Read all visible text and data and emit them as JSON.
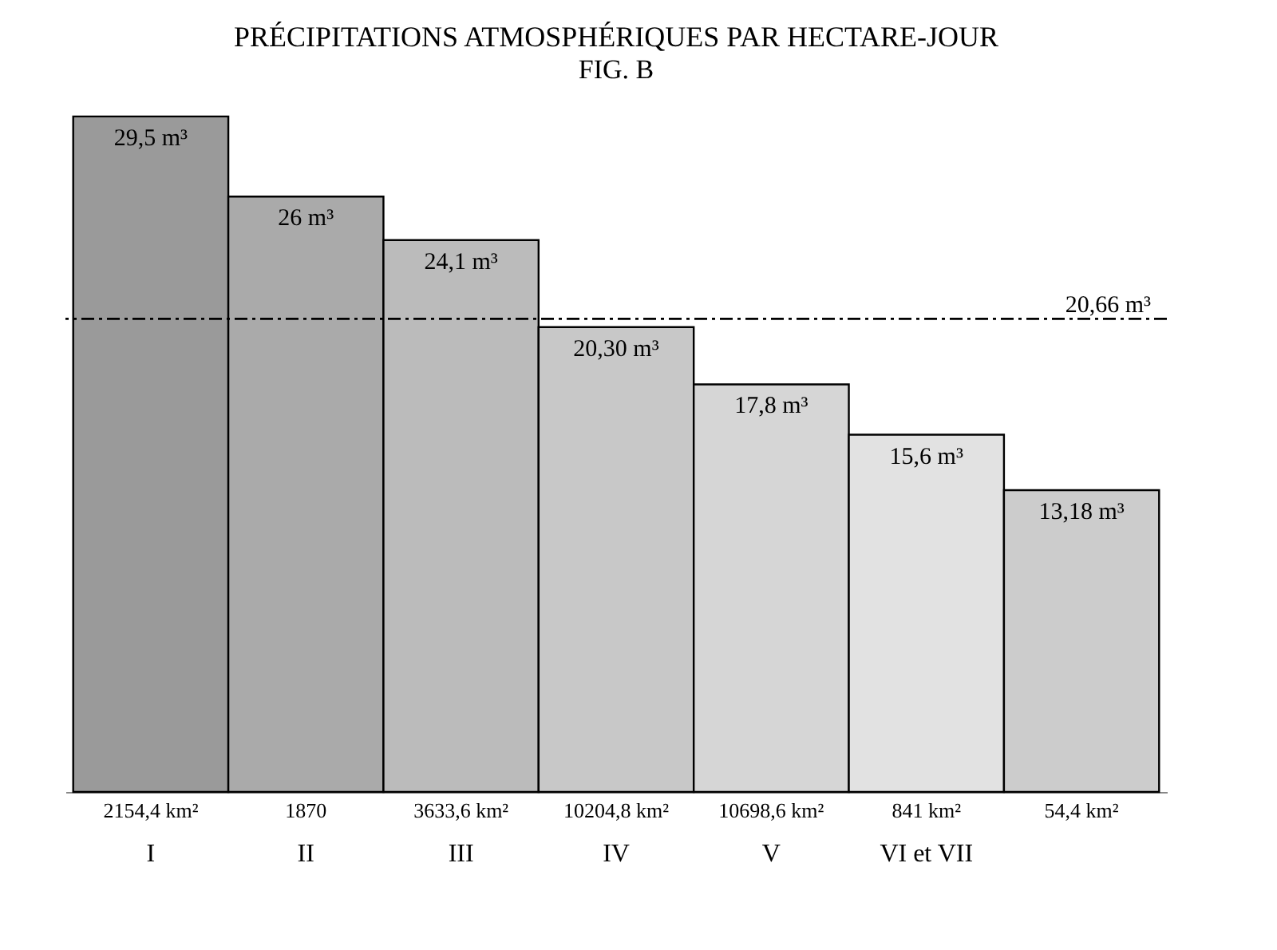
{
  "chart_data": {
    "type": "bar",
    "title": "PRÉCIPITATIONS ATMOSPHÉRIQUES PAR HECTARE-JOUR",
    "subtitle": "FIG. B",
    "categories": [
      "I",
      "II",
      "III",
      "IV",
      "V",
      "VI et VII",
      null
    ],
    "values": [
      29.5,
      26,
      24.1,
      20.3,
      17.8,
      15.6,
      13.18
    ],
    "value_labels": [
      "29,5 m³",
      "26 m³",
      "24,1 m³",
      "20,30 m³",
      "17,8 m³",
      "15,6 m³",
      "13,18 m³"
    ],
    "colors": [
      "#9a9a9a",
      "#aaaaaa",
      "#bbbbbb",
      "#c8c8c8",
      "#d6d6d6",
      "#e2e2e2",
      "#cccccc"
    ],
    "tick_labels": "x",
    "ref_lines": [
      {
        "axis": "y",
        "value": 20.66,
        "label": "20,66 m³",
        "line_style": "dashed",
        "color": "#000000"
      }
    ],
    "annotations": [
      "2154,4 km²",
      "1870",
      "3633,6 km²",
      "10204,8 km²",
      "10698,6 km²",
      "841 km²",
      "54,4 km²"
    ]
  }
}
